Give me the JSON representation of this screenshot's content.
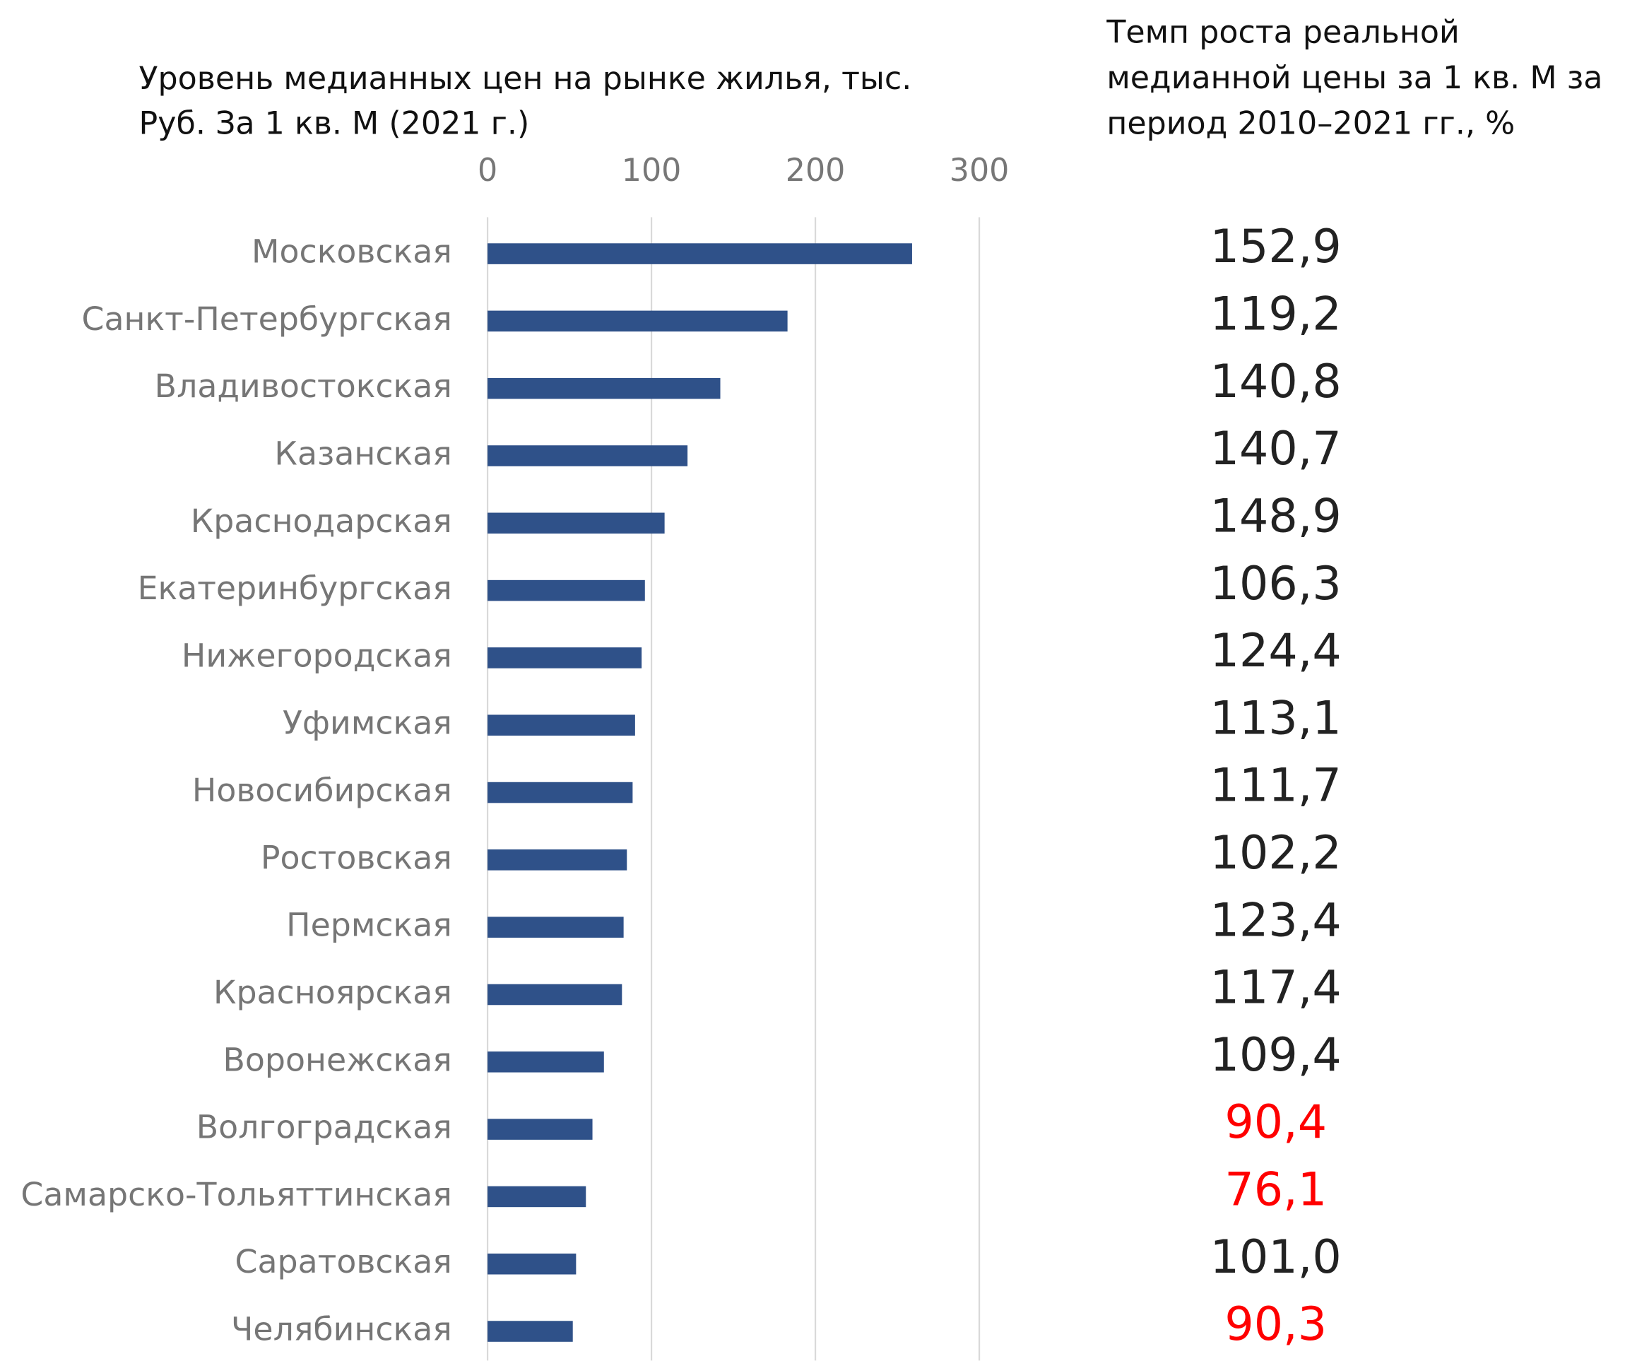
{
  "chart_data": [
    {
      "type": "bar",
      "orientation": "horizontal",
      "title": [
        "Уровень медианных цен на рынке жилья, тыс.",
        "Руб. За 1 кв. М (2021 г.)"
      ],
      "categories": [
        "Московская",
        "Санкт-Петербургская",
        "Владивостокская",
        "Казанская",
        "Краснодарская",
        "Екатеринбургская",
        "Нижегородская",
        "Уфимская",
        "Новосибирская",
        "Ростовская",
        "Пермская",
        "Красноярская",
        "Воронежская",
        "Волгоградская",
        "Самарско-Тольяттинская",
        "Саратовская",
        "Челябинская"
      ],
      "values": [
        259,
        183,
        142,
        122,
        108,
        96,
        94,
        90,
        88.5,
        85,
        83,
        82,
        71,
        64,
        60,
        54,
        52
      ],
      "color": "#2f5189",
      "xlim": [
        0,
        300
      ],
      "xticks": [
        0,
        100,
        200,
        300
      ],
      "grid": true
    },
    {
      "type": "text-column",
      "title": [
        "Темп роста реальной",
        "медианной цены за 1 кв. М за",
        "период 2010–2021 гг., %"
      ],
      "values": [
        152.9,
        119.2,
        140.8,
        140.7,
        148.9,
        106.3,
        124.4,
        113.1,
        111.7,
        102.2,
        123.4,
        117.4,
        109.4,
        90.4,
        76.1,
        101.0,
        90.3
      ],
      "value_labels": [
        "152,9",
        "119,2",
        "140,8",
        "140,7",
        "148,9",
        "106,3",
        "124,4",
        "113,1",
        "111,7",
        "102,2",
        "123,4",
        "117,4",
        "109,4",
        "90,4",
        "76,1",
        "101,0",
        "90,3"
      ],
      "colors": [
        "#222222",
        "#222222",
        "#222222",
        "#222222",
        "#222222",
        "#222222",
        "#222222",
        "#222222",
        "#222222",
        "#222222",
        "#222222",
        "#222222",
        "#222222",
        "#ff0000",
        "#ff0000",
        "#222222",
        "#ff0000"
      ]
    }
  ]
}
